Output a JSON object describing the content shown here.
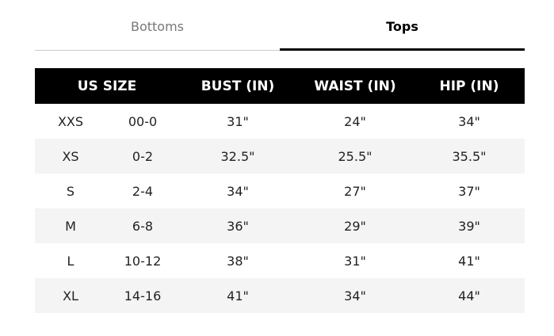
{
  "tabs": [
    {
      "label": "Bottoms",
      "active": false
    },
    {
      "label": "Tops",
      "active": true
    }
  ],
  "headers": [
    "US SIZE",
    "BUST (IN)",
    "WAIST (IN)",
    "HIP (IN)"
  ],
  "rows": [
    [
      "XXS",
      "00-0",
      "31\"",
      "24\"",
      "34\""
    ],
    [
      "XS",
      "0-2",
      "32.5\"",
      "25.5\"",
      "35.5\""
    ],
    [
      "S",
      "2-4",
      "34\"",
      "27\"",
      "37\""
    ],
    [
      "M",
      "6-8",
      "36\"",
      "29\"",
      "39\""
    ],
    [
      "L",
      "10-12",
      "38\"",
      "31\"",
      "41\""
    ],
    [
      "XL",
      "14-16",
      "41\"",
      "34\"",
      "44\""
    ]
  ]
}
